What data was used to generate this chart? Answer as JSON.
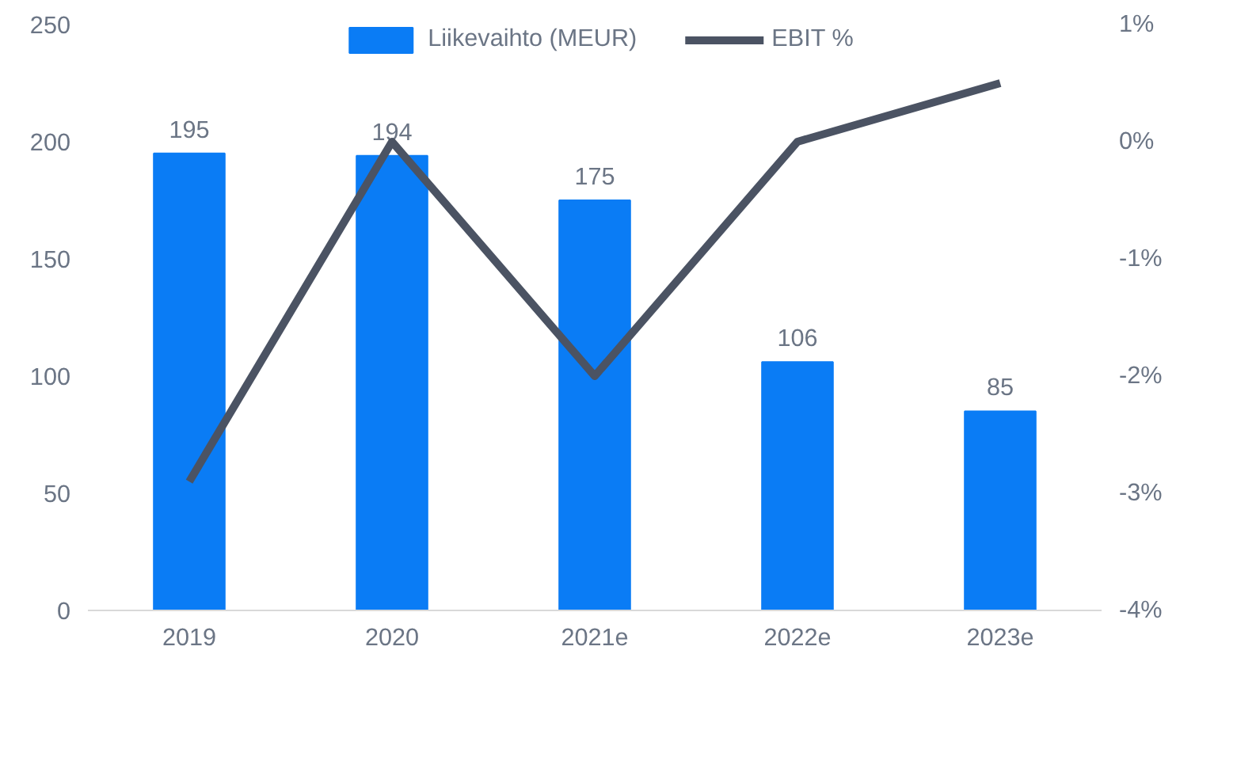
{
  "chart_data": {
    "type": "bar",
    "categories": [
      "2019",
      "2020",
      "2021e",
      "2022e",
      "2023e"
    ],
    "series": [
      {
        "name": "Liikevaihto (MEUR)",
        "color": "#0a7cf5",
        "values": [
          195,
          194,
          175,
          106,
          85
        ],
        "value_labels": [
          "195",
          "194",
          "175",
          "106",
          "85"
        ]
      },
      {
        "name": "EBIT %",
        "type": "line",
        "axis": "y2",
        "color": "#4b5363",
        "values": [
          -2.9,
          0.0,
          -2.0,
          0.0,
          0.5
        ]
      }
    ],
    "ylim": [
      0,
      250
    ],
    "yticks": [
      0,
      50,
      100,
      150,
      200,
      250
    ],
    "y2lim": [
      -4,
      1
    ],
    "y2ticks": [
      {
        "value": -4,
        "label": "-4%"
      },
      {
        "value": -3,
        "label": "-3%"
      },
      {
        "value": -2,
        "label": "-2%"
      },
      {
        "value": -1,
        "label": "-1%"
      },
      {
        "value": 0,
        "label": "0%"
      },
      {
        "value": 1,
        "label": "1%"
      }
    ],
    "legend": "top",
    "line_style": "solid"
  }
}
